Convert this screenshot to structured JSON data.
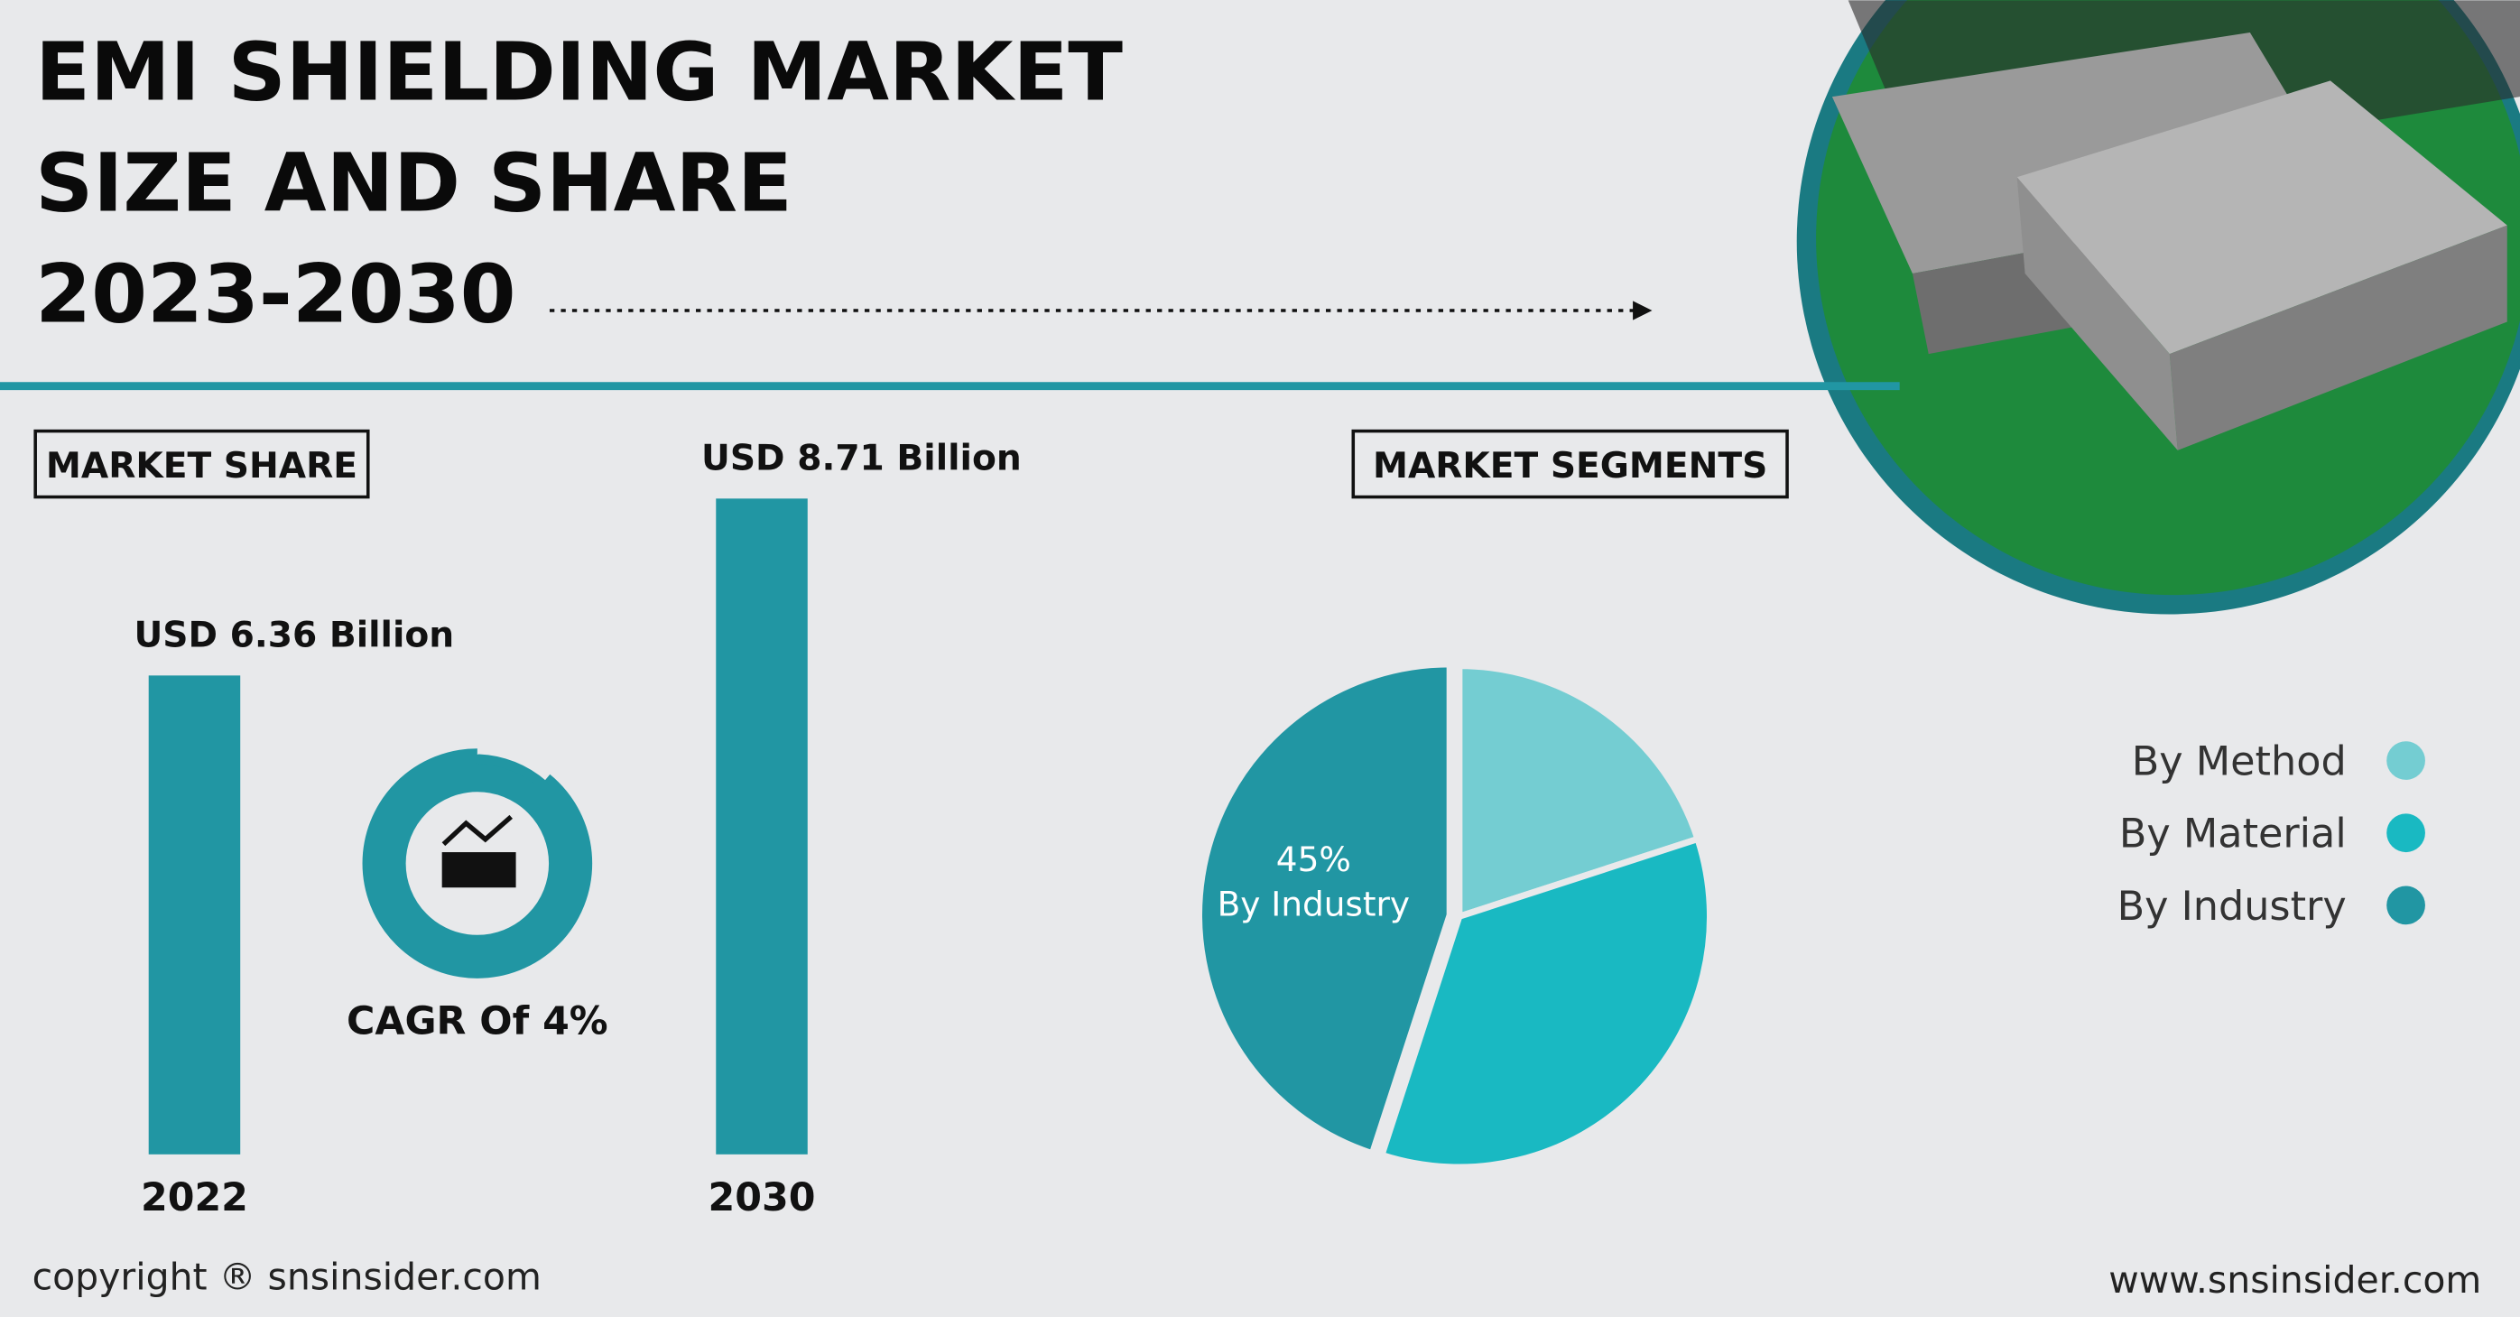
{
  "title_lines": [
    "EMI SHIELDING MARKET",
    "SIZE AND SHARE",
    "2023-2030"
  ],
  "market_share_heading": "MARKET SHARE",
  "market_segments_heading": "MARKET SEGMENTS",
  "cagr": "CAGR Of 4%",
  "copyright": "copyright ® snsinsider.com",
  "website": "www.snsinsider.com",
  "chart_data": [
    {
      "type": "bar",
      "categories": [
        "2022",
        "2030"
      ],
      "values": [
        6.36,
        8.71
      ],
      "value_labels": [
        "USD 6.36 Billion",
        "USD 8.71 Billion"
      ],
      "color": "#2196a3"
    },
    {
      "type": "pie",
      "categories": [
        "By Method",
        "By Material",
        "By Industry"
      ],
      "values": [
        20,
        35,
        45
      ],
      "colors": [
        "#74cdd2",
        "#19b9c2",
        "#2196a3"
      ],
      "annotation": "45%"
    }
  ]
}
